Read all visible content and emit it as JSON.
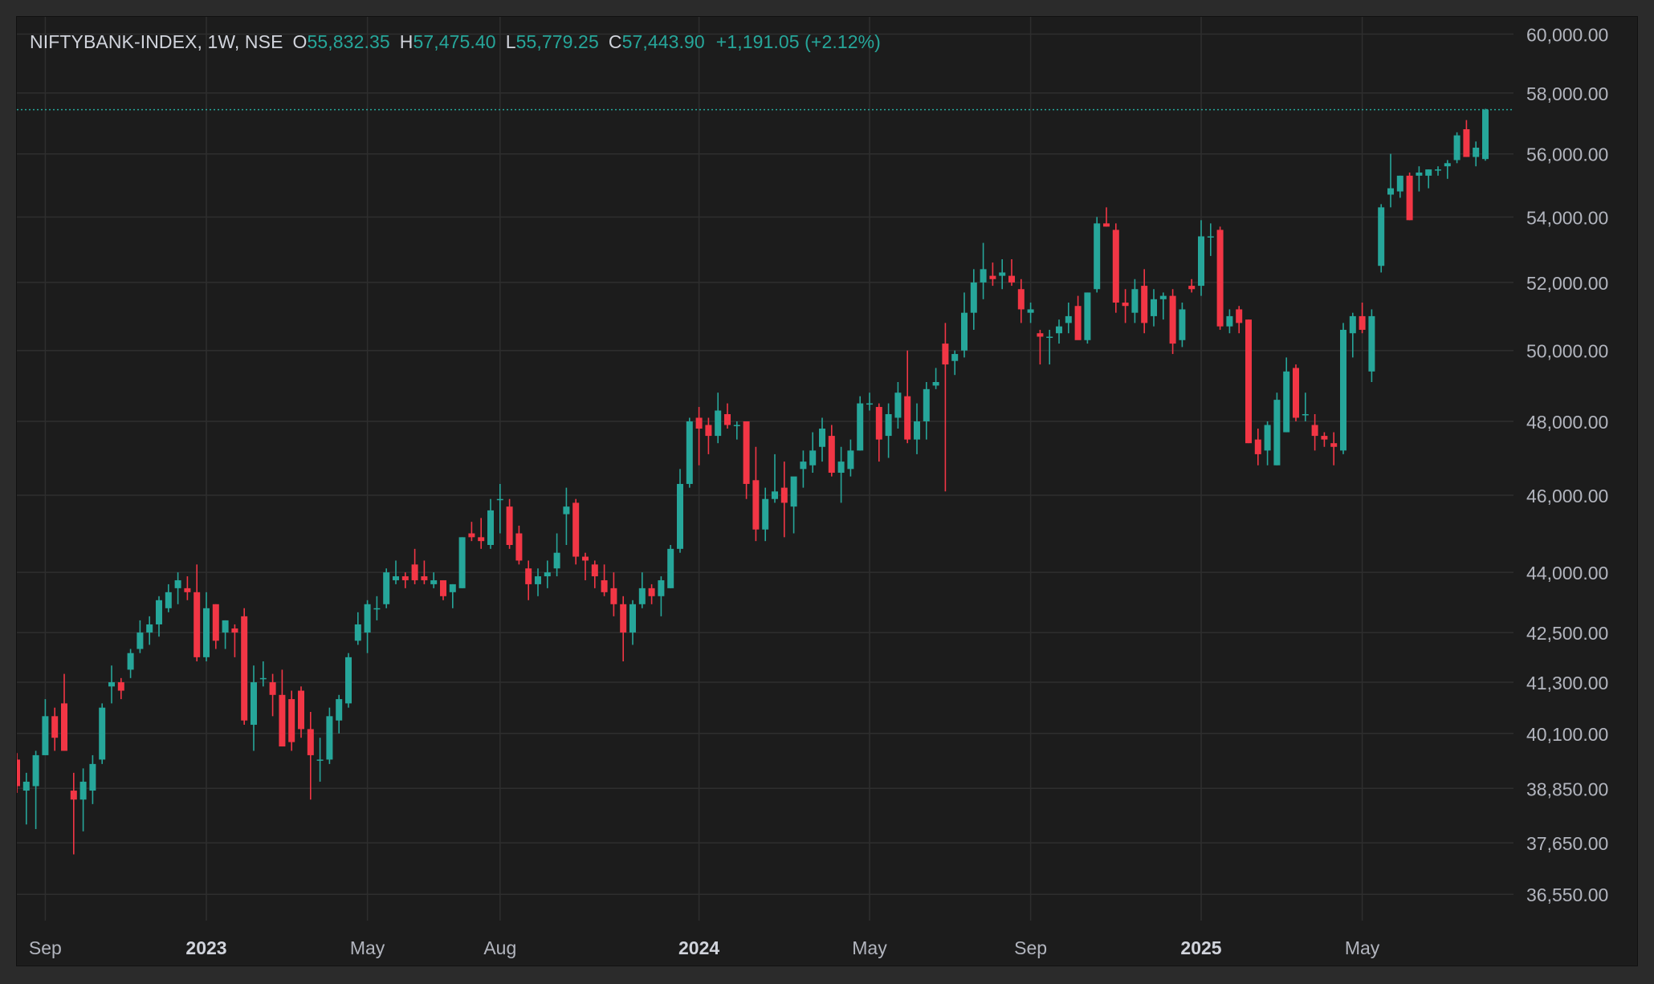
{
  "legend": {
    "symbol": "NIFTYBANK-INDEX, 1W, NSE",
    "open_label": "O",
    "open": "55,832.35",
    "high_label": "H",
    "high": "57,475.40",
    "low_label": "L",
    "low": "55,779.25",
    "close_label": "C",
    "close": "57,443.90",
    "change": "+1,191.05 (+2.12%)"
  },
  "colors": {
    "up": "#26a69a",
    "down": "#f23645",
    "background": "#1c1c1c",
    "grid": "#2e2e2e",
    "text": "#b2b5be"
  },
  "chart_data": {
    "type": "candlestick",
    "interval": "1W",
    "y_scale": "log",
    "ylim": [
      36000,
      60600
    ],
    "y_ticks": [
      {
        "value": 60000,
        "label": "60,000.00"
      },
      {
        "value": 58000,
        "label": "58,000.00"
      },
      {
        "value": 56000,
        "label": "56,000.00"
      },
      {
        "value": 54000,
        "label": "54,000.00"
      },
      {
        "value": 52000,
        "label": "52,000.00"
      },
      {
        "value": 50000,
        "label": "50,000.00"
      },
      {
        "value": 48000,
        "label": "48,000.00"
      },
      {
        "value": 46000,
        "label": "46,000.00"
      },
      {
        "value": 44000,
        "label": "44,000.00"
      },
      {
        "value": 42500,
        "label": "42,500.00"
      },
      {
        "value": 41300,
        "label": "41,300.00"
      },
      {
        "value": 40100,
        "label": "40,100.00"
      },
      {
        "value": 38850,
        "label": "38,850.00"
      },
      {
        "value": 37650,
        "label": "37,650.00"
      },
      {
        "value": 36550,
        "label": "36,550.00"
      }
    ],
    "x_ticks": [
      {
        "index": 3,
        "label": "Sep",
        "bold": false
      },
      {
        "index": 20,
        "label": "2023",
        "bold": true
      },
      {
        "index": 37,
        "label": "May",
        "bold": false
      },
      {
        "index": 51,
        "label": "Aug",
        "bold": false
      },
      {
        "index": 72,
        "label": "2024",
        "bold": true
      },
      {
        "index": 90,
        "label": "May",
        "bold": false
      },
      {
        "index": 107,
        "label": "Sep",
        "bold": false
      },
      {
        "index": 125,
        "label": "2025",
        "bold": true
      },
      {
        "index": 142,
        "label": "May",
        "bold": false
      }
    ],
    "last_price_line": 57443.9,
    "candles": [
      [
        39500,
        39650,
        38750,
        38900
      ],
      [
        38800,
        39200,
        38050,
        39000
      ],
      [
        38900,
        39700,
        37950,
        39600
      ],
      [
        39600,
        40900,
        39600,
        40500
      ],
      [
        40500,
        40700,
        39700,
        40000
      ],
      [
        40800,
        41500,
        39700,
        39700
      ],
      [
        38800,
        39200,
        37400,
        38600
      ],
      [
        38600,
        39300,
        37900,
        39000
      ],
      [
        38800,
        39600,
        38500,
        39400
      ],
      [
        39500,
        40800,
        39400,
        40700
      ],
      [
        41200,
        41700,
        40800,
        41300
      ],
      [
        41300,
        41400,
        40900,
        41100
      ],
      [
        41600,
        42100,
        41400,
        42000
      ],
      [
        42100,
        42800,
        42000,
        42500
      ],
      [
        42500,
        42900,
        42200,
        42700
      ],
      [
        42700,
        43400,
        42400,
        43300
      ],
      [
        43100,
        43700,
        43000,
        43500
      ],
      [
        43600,
        44000,
        43200,
        43800
      ],
      [
        43600,
        43900,
        43300,
        43500
      ],
      [
        43500,
        44200,
        41800,
        41900
      ],
      [
        41900,
        43500,
        41800,
        43100
      ],
      [
        43200,
        43200,
        42100,
        42300
      ],
      [
        42500,
        42800,
        42100,
        42800
      ],
      [
        42600,
        42700,
        41900,
        42500
      ],
      [
        42900,
        43100,
        40300,
        40400
      ],
      [
        40300,
        41700,
        39700,
        41300
      ],
      [
        41400,
        41800,
        41200,
        41400
      ],
      [
        41300,
        41500,
        40500,
        41000
      ],
      [
        41000,
        41600,
        39800,
        39800
      ],
      [
        40900,
        41100,
        39700,
        39900
      ],
      [
        41100,
        41200,
        40000,
        40200
      ],
      [
        40200,
        40600,
        38600,
        39600
      ],
      [
        39500,
        40000,
        39000,
        39500
      ],
      [
        39500,
        40700,
        39400,
        40500
      ],
      [
        40400,
        41000,
        40100,
        40900
      ],
      [
        40800,
        42000,
        40700,
        41900
      ],
      [
        42300,
        43000,
        42200,
        42700
      ],
      [
        42500,
        43300,
        42000,
        43200
      ],
      [
        43100,
        43400,
        42800,
        43100
      ],
      [
        43200,
        44100,
        43100,
        44000
      ],
      [
        43800,
        44300,
        43700,
        43900
      ],
      [
        43900,
        44000,
        43600,
        43800
      ],
      [
        44200,
        44600,
        43700,
        43800
      ],
      [
        43900,
        44300,
        43700,
        43800
      ],
      [
        43700,
        44000,
        43600,
        43800
      ],
      [
        43800,
        43800,
        43300,
        43400
      ],
      [
        43500,
        43700,
        43100,
        43700
      ],
      [
        43600,
        44900,
        43600,
        44900
      ],
      [
        45000,
        45300,
        44800,
        44900
      ],
      [
        44900,
        45400,
        44600,
        44800
      ],
      [
        44700,
        45900,
        44600,
        45600
      ],
      [
        45900,
        46300,
        45000,
        45900
      ],
      [
        45700,
        45900,
        44600,
        44700
      ],
      [
        45000,
        45200,
        44200,
        44300
      ],
      [
        44100,
        44300,
        43300,
        43700
      ],
      [
        43700,
        44100,
        43400,
        43900
      ],
      [
        43900,
        44300,
        43600,
        44000
      ],
      [
        44100,
        45000,
        43900,
        44500
      ],
      [
        45500,
        46200,
        44700,
        45700
      ],
      [
        45800,
        45900,
        44200,
        44400
      ],
      [
        44400,
        44500,
        43800,
        44300
      ],
      [
        44200,
        44300,
        43600,
        43900
      ],
      [
        43800,
        44200,
        43400,
        43500
      ],
      [
        43600,
        44000,
        42900,
        43200
      ],
      [
        43200,
        43400,
        41800,
        42500
      ],
      [
        42500,
        43300,
        42200,
        43200
      ],
      [
        43200,
        44000,
        43100,
        43600
      ],
      [
        43600,
        43700,
        43200,
        43400
      ],
      [
        43400,
        43900,
        42900,
        43800
      ],
      [
        43600,
        44700,
        43600,
        44600
      ],
      [
        44600,
        46700,
        44500,
        46300
      ],
      [
        46300,
        48100,
        46200,
        48000
      ],
      [
        48100,
        48400,
        46800,
        47800
      ],
      [
        47900,
        48100,
        47100,
        47600
      ],
      [
        47600,
        48800,
        47400,
        48300
      ],
      [
        48200,
        48500,
        47800,
        47900
      ],
      [
        47900,
        48000,
        47500,
        47900
      ],
      [
        48000,
        48000,
        45900,
        46300
      ],
      [
        46400,
        47300,
        44800,
        45100
      ],
      [
        45100,
        46200,
        44800,
        45900
      ],
      [
        45900,
        47100,
        45800,
        46100
      ],
      [
        46200,
        46900,
        44900,
        45800
      ],
      [
        45700,
        46400,
        45000,
        46500
      ],
      [
        46700,
        47200,
        46200,
        46900
      ],
      [
        46800,
        47700,
        46600,
        47200
      ],
      [
        47300,
        48100,
        46900,
        47800
      ],
      [
        47600,
        47900,
        46500,
        46600
      ],
      [
        46600,
        47300,
        45800,
        46900
      ],
      [
        46700,
        47500,
        46500,
        47200
      ],
      [
        47200,
        48700,
        47200,
        48500
      ],
      [
        48500,
        48800,
        48300,
        48500
      ],
      [
        48400,
        48500,
        46900,
        47500
      ],
      [
        47600,
        48500,
        47000,
        48200
      ],
      [
        48100,
        49100,
        47800,
        48800
      ],
      [
        48700,
        50000,
        47400,
        47500
      ],
      [
        47500,
        48500,
        47100,
        48000
      ],
      [
        48000,
        49100,
        47500,
        48900
      ],
      [
        49000,
        49500,
        48900,
        49100
      ],
      [
        50200,
        50800,
        46100,
        49600
      ],
      [
        49700,
        50000,
        49300,
        49900
      ],
      [
        50000,
        51700,
        49800,
        51100
      ],
      [
        51100,
        52400,
        50600,
        52000
      ],
      [
        52000,
        53200,
        51500,
        52400
      ],
      [
        52200,
        52600,
        51900,
        52100
      ],
      [
        52200,
        52700,
        51800,
        52300
      ],
      [
        52200,
        52700,
        51900,
        52000
      ],
      [
        51800,
        52100,
        50800,
        51200
      ],
      [
        51100,
        51400,
        50800,
        51200
      ],
      [
        50500,
        50600,
        49600,
        50400
      ],
      [
        50400,
        50600,
        49600,
        50400
      ],
      [
        50500,
        50900,
        50200,
        50700
      ],
      [
        50800,
        51400,
        50500,
        51000
      ],
      [
        51300,
        51600,
        50400,
        50300
      ],
      [
        50300,
        51700,
        50200,
        51700
      ],
      [
        51800,
        54000,
        51700,
        53800
      ],
      [
        53800,
        54300,
        53700,
        53700
      ],
      [
        53600,
        53800,
        51100,
        51400
      ],
      [
        51400,
        51800,
        50800,
        51300
      ],
      [
        51100,
        52100,
        50800,
        51800
      ],
      [
        51900,
        52400,
        50500,
        50800
      ],
      [
        51000,
        51800,
        50700,
        51500
      ],
      [
        51500,
        51700,
        50900,
        51600
      ],
      [
        51600,
        51800,
        49900,
        50200
      ],
      [
        50300,
        51400,
        50100,
        51200
      ],
      [
        51900,
        52100,
        51700,
        51800
      ],
      [
        51900,
        53900,
        51600,
        53400
      ],
      [
        53400,
        53800,
        52800,
        53400
      ],
      [
        53600,
        53700,
        50600,
        50700
      ],
      [
        50700,
        51200,
        50500,
        51000
      ],
      [
        51200,
        51300,
        50500,
        50800
      ],
      [
        50900,
        50900,
        47400,
        47400
      ],
      [
        47500,
        47800,
        46800,
        47100
      ],
      [
        47200,
        48000,
        46800,
        47900
      ],
      [
        46800,
        48800,
        46800,
        48600
      ],
      [
        47700,
        49800,
        47700,
        49400
      ],
      [
        49500,
        49600,
        48000,
        48100
      ],
      [
        48200,
        48800,
        48000,
        48200
      ],
      [
        47900,
        48200,
        47200,
        47600
      ],
      [
        47600,
        47700,
        47300,
        47500
      ],
      [
        47400,
        47700,
        46800,
        47300
      ],
      [
        47200,
        50800,
        47100,
        50600
      ],
      [
        50500,
        51100,
        49800,
        51000
      ],
      [
        51000,
        51400,
        50500,
        50600
      ],
      [
        49400,
        51200,
        49100,
        51000
      ],
      [
        52500,
        54400,
        52300,
        54300
      ],
      [
        54700,
        56000,
        54300,
        54900
      ],
      [
        54800,
        55300,
        54600,
        55300
      ],
      [
        55300,
        55400,
        53900,
        53900
      ],
      [
        55300,
        55600,
        54800,
        55400
      ],
      [
        55300,
        55500,
        54900,
        55500
      ],
      [
        55500,
        55600,
        55300,
        55500
      ],
      [
        55600,
        55800,
        55200,
        55700
      ],
      [
        55800,
        56700,
        55700,
        56600
      ],
      [
        56800,
        57100,
        55900,
        55900
      ],
      [
        55900,
        56400,
        55600,
        56200
      ],
      [
        55832.35,
        57475.4,
        55779.25,
        57443.9
      ]
    ]
  }
}
